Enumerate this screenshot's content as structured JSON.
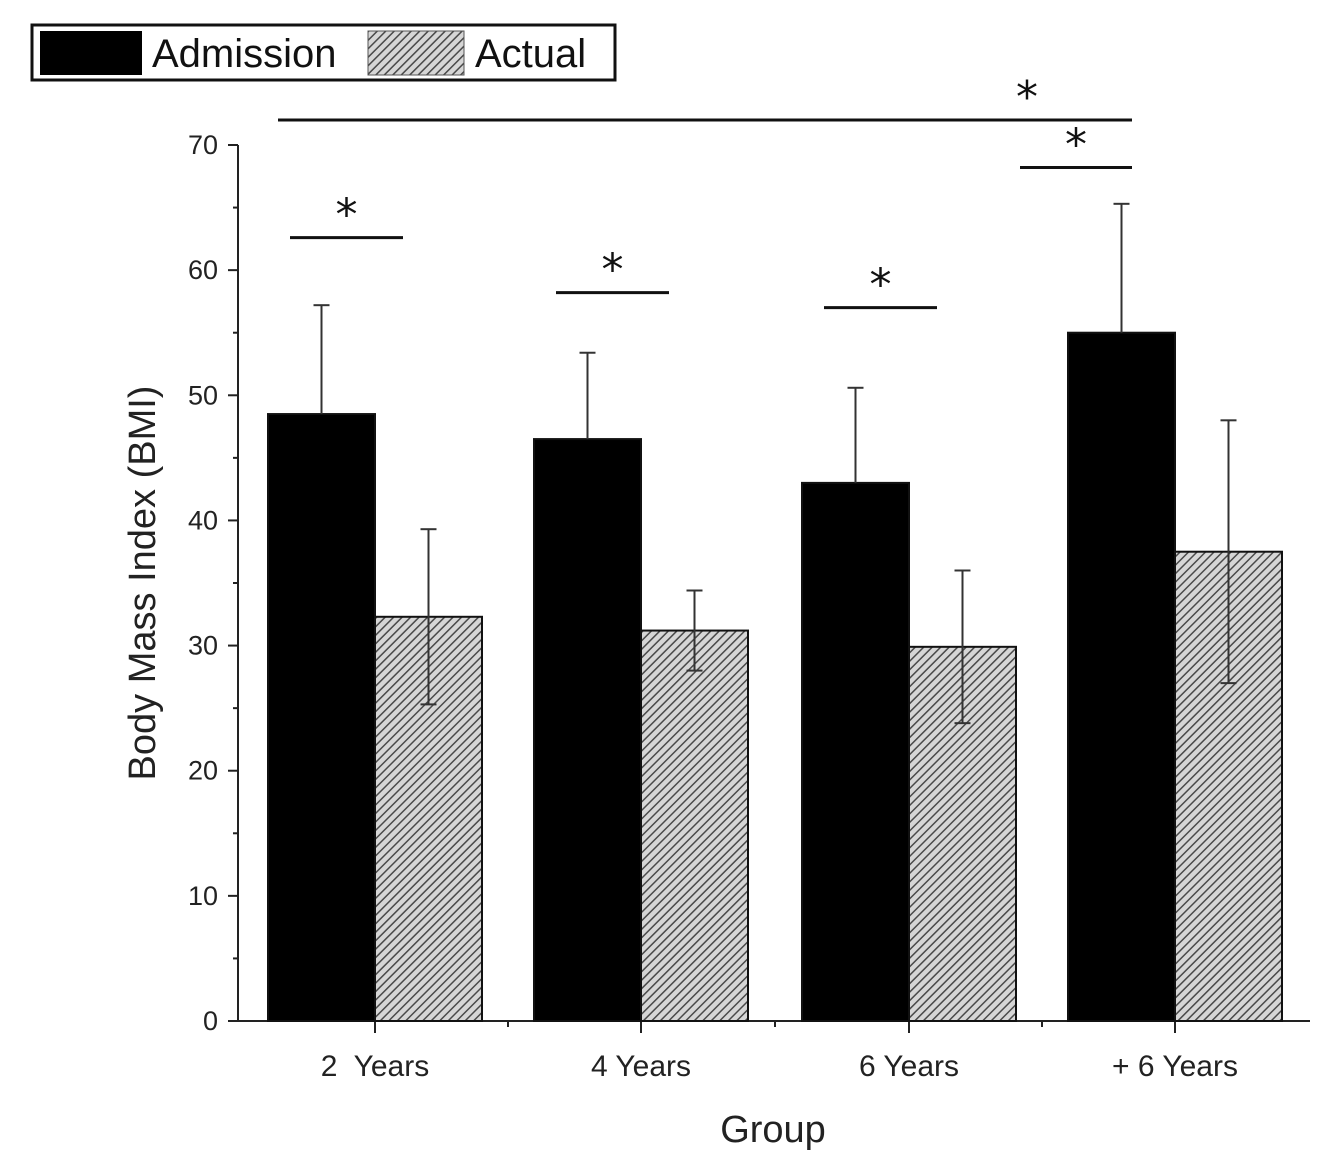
{
  "chart_data": {
    "type": "bar",
    "title": "",
    "xlabel": "Group",
    "ylabel": "Body Mass Index (BMI)",
    "ylim": [
      0,
      70
    ],
    "yticks": [
      0,
      10,
      20,
      30,
      40,
      50,
      60,
      70
    ],
    "grid": false,
    "legend_position": "top-left",
    "categories": [
      "2  Years",
      "4 Years",
      "6 Years",
      "+ 6 Years"
    ],
    "series": [
      {
        "name": "Admission",
        "fill": "solid",
        "color": "#000000",
        "values": [
          48.5,
          46.5,
          43.0,
          55.0
        ],
        "errors": [
          8.7,
          6.9,
          7.6,
          10.3
        ]
      },
      {
        "name": "Actual",
        "fill": "hatched",
        "color": "#9a9a9a",
        "values": [
          32.3,
          31.2,
          29.9,
          37.5
        ],
        "errors": [
          7.0,
          3.2,
          6.1,
          10.5
        ]
      }
    ],
    "significance": [
      {
        "label": "*",
        "type": "within-group",
        "group": "2  Years",
        "level": 62.6
      },
      {
        "label": "*",
        "type": "within-group",
        "group": "4 Years",
        "level": 58.2
      },
      {
        "label": "*",
        "type": "within-group",
        "group": "6 Years",
        "level": 57.0
      },
      {
        "label": "*",
        "type": "between-groups",
        "from": "2  Years",
        "to": "+ 6 Years",
        "level": 72.0
      },
      {
        "label": "*",
        "type": "between-groups",
        "from": "6 Years",
        "to": "+ 6 Years",
        "level": 68.2
      }
    ]
  }
}
